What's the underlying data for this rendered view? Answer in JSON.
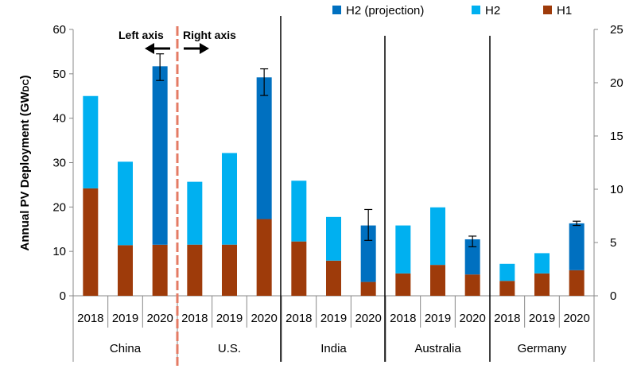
{
  "chart_data": {
    "type": "bar",
    "stacked": true,
    "ylabel_main": "Annual PV Deployment (GW",
    "ylabel_sub": "DC",
    "ylabel_close": ")",
    "left_axis": {
      "ylim": [
        0,
        60
      ],
      "ticks": [
        "0",
        "10",
        "20",
        "30",
        "40",
        "50",
        "60"
      ]
    },
    "right_axis": {
      "ylim": [
        0,
        25
      ],
      "ticks": [
        "0",
        "5",
        "10",
        "15",
        "20",
        "25"
      ]
    },
    "divider_labels": {
      "left": "Left axis",
      "right": "Right axis"
    },
    "legend": [
      {
        "name": "H2 (projection)",
        "color": "#0070C0"
      },
      {
        "name": "H2",
        "color": "#00B0F0"
      },
      {
        "name": "H1",
        "color": "#9E3B0A"
      }
    ],
    "colors": {
      "H1": "#9E3B0A",
      "H2": "#00B0F0",
      "H2 (projection)": "#0070C0"
    },
    "groups": [
      {
        "name": "China",
        "axis": "left",
        "bars": [
          {
            "year": "2018",
            "H1": 24.2,
            "H2": 20.8,
            "H2_projection": null,
            "error": null
          },
          {
            "year": "2019",
            "H1": 11.4,
            "H2": 18.8,
            "H2_projection": null,
            "error": null
          },
          {
            "year": "2020",
            "H1": 11.5,
            "H2": null,
            "H2_projection": 40.2,
            "error": [
              48.5,
              54.5
            ]
          }
        ]
      },
      {
        "name": "U.S.",
        "axis": "right",
        "bars": [
          {
            "year": "2018",
            "H1": 4.8,
            "H2": 5.9,
            "H2_projection": null,
            "error": null
          },
          {
            "year": "2019",
            "H1": 4.8,
            "H2": 8.6,
            "H2_projection": null,
            "error": null
          },
          {
            "year": "2020",
            "H1": 7.2,
            "H2": null,
            "H2_projection": 13.3,
            "error": [
              18.8,
              21.3
            ]
          }
        ]
      },
      {
        "name": "India",
        "axis": "right",
        "bars": [
          {
            "year": "2018",
            "H1": 5.1,
            "H2": 5.7,
            "H2_projection": null,
            "error": null
          },
          {
            "year": "2019",
            "H1": 3.3,
            "H2": 4.1,
            "H2_projection": null,
            "error": null
          },
          {
            "year": "2020",
            "H1": 1.3,
            "H2": null,
            "H2_projection": 5.3,
            "error": [
              5.2,
              8.1
            ]
          }
        ]
      },
      {
        "name": "Australia",
        "axis": "right",
        "bars": [
          {
            "year": "2018",
            "H1": 2.1,
            "H2": 4.5,
            "H2_projection": null,
            "error": null
          },
          {
            "year": "2019",
            "H1": 2.9,
            "H2": 5.4,
            "H2_projection": null,
            "error": null
          },
          {
            "year": "2020",
            "H1": 2.0,
            "H2": null,
            "H2_projection": 3.3,
            "error": [
              4.6,
              5.6
            ]
          }
        ]
      },
      {
        "name": "Germany",
        "axis": "right",
        "bars": [
          {
            "year": "2018",
            "H1": 1.4,
            "H2": 1.6,
            "H2_projection": null,
            "error": null
          },
          {
            "year": "2019",
            "H1": 2.1,
            "H2": 1.9,
            "H2_projection": null,
            "error": null
          },
          {
            "year": "2020",
            "H1": 2.4,
            "H2": null,
            "H2_projection": 4.4,
            "error": [
              6.6,
              7.0
            ]
          }
        ]
      }
    ]
  }
}
